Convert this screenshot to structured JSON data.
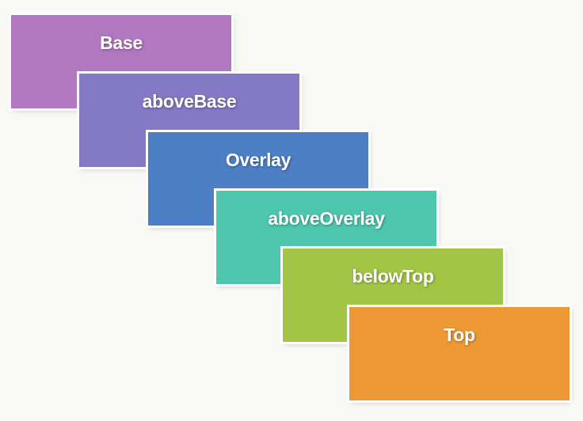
{
  "layers": [
    {
      "label": "Base",
      "color": "#b277c1"
    },
    {
      "label": "aboveBase",
      "color": "#8479c4"
    },
    {
      "label": "Overlay",
      "color": "#4d7fc4"
    },
    {
      "label": "aboveOverlay",
      "color": "#4ec6ae"
    },
    {
      "label": "belowTop",
      "color": "#a3c545"
    },
    {
      "label": "Top",
      "color": "#ec9935"
    }
  ]
}
